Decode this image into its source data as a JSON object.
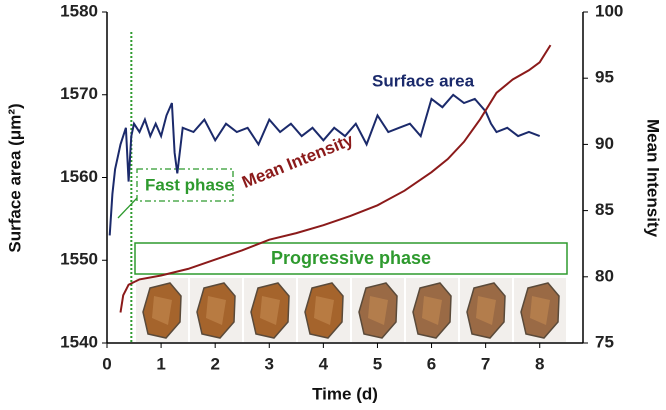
{
  "chart_data": {
    "type": "line",
    "xlabel": "Time (d)",
    "ylabel": "Surface area (μm²)",
    "y2label": "Mean Intensity",
    "xlim": [
      0,
      8.8
    ],
    "xticks": [
      0,
      1,
      2,
      3,
      4,
      5,
      6,
      7,
      8
    ],
    "ylim": [
      1540,
      1580
    ],
    "yticks": [
      1540,
      1550,
      1560,
      1570,
      1580
    ],
    "y2lim": [
      75,
      100
    ],
    "y2ticks": [
      75,
      80,
      85,
      90,
      95,
      100
    ],
    "marker_line_x": 0.45,
    "annotations": [
      "Surface area",
      "Mean Intensity",
      "Fast phase",
      "Progressive phase"
    ],
    "series": [
      {
        "name": "Surface area",
        "color": "#1b2a6b",
        "x": [
          0.05,
          0.1,
          0.15,
          0.2,
          0.25,
          0.3,
          0.35,
          0.4,
          0.45,
          0.5,
          0.6,
          0.7,
          0.8,
          0.9,
          1.0,
          1.1,
          1.2,
          1.25,
          1.3,
          1.4,
          1.6,
          1.8,
          2.0,
          2.2,
          2.4,
          2.6,
          2.8,
          3.0,
          3.2,
          3.4,
          3.6,
          3.8,
          4.0,
          4.2,
          4.4,
          4.6,
          4.8,
          5.0,
          5.2,
          5.4,
          5.6,
          5.8,
          6.0,
          6.2,
          6.4,
          6.6,
          6.8,
          7.0,
          7.1,
          7.2,
          7.4,
          7.6,
          7.8,
          8.0
        ],
        "values": [
          1553,
          1558,
          1561,
          1562.5,
          1564,
          1565,
          1566,
          1559.5,
          1565,
          1566.5,
          1565.5,
          1567,
          1565,
          1566.5,
          1565,
          1567.5,
          1569,
          1563,
          1560.5,
          1566,
          1565.5,
          1567,
          1564.5,
          1566.5,
          1565.5,
          1566,
          1564,
          1567,
          1565.5,
          1566.5,
          1565,
          1566,
          1564.5,
          1566,
          1565,
          1566.5,
          1564,
          1567.5,
          1565.5,
          1566,
          1566.5,
          1565,
          1569.5,
          1568.5,
          1570,
          1569,
          1569.5,
          1568,
          1566.5,
          1565.5,
          1566,
          1565,
          1565.5,
          1565
        ]
      },
      {
        "name": "Mean Intensity",
        "color": "#8b1a1a",
        "axis": "y2",
        "x": [
          0.25,
          0.3,
          0.4,
          0.6,
          1.0,
          1.5,
          2.0,
          2.5,
          3.0,
          3.5,
          4.0,
          4.5,
          5.0,
          5.5,
          6.0,
          6.3,
          6.6,
          6.9,
          7.2,
          7.5,
          7.8,
          8.0,
          8.2
        ],
        "values": [
          77.3,
          78.6,
          79.4,
          79.8,
          80.1,
          80.6,
          81.3,
          82.0,
          82.8,
          83.3,
          83.9,
          84.6,
          85.4,
          86.5,
          87.9,
          88.9,
          90.2,
          91.9,
          93.9,
          94.9,
          95.6,
          96.2,
          97.5
        ]
      }
    ]
  }
}
